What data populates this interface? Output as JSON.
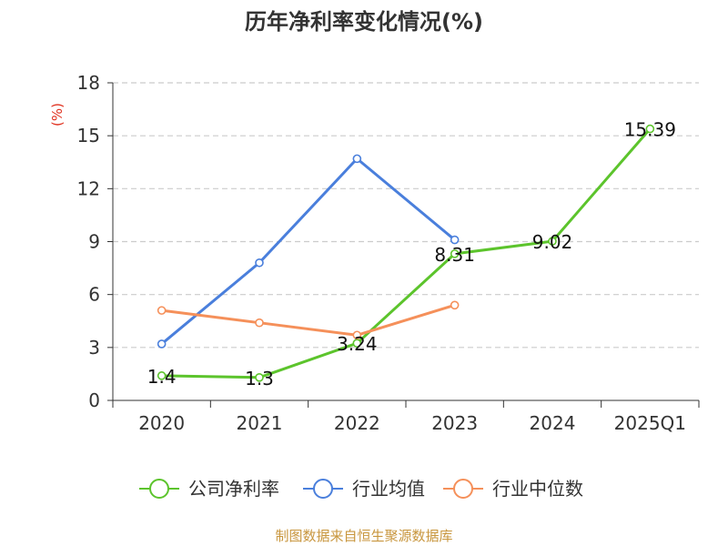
{
  "chart_data": {
    "type": "line",
    "title": "历年净利率变化情况(%)",
    "ylabel": "(%)",
    "xlabel": "",
    "categories": [
      "2020",
      "2021",
      "2022",
      "2023",
      "2024",
      "2025Q1"
    ],
    "yticks": [
      0,
      3,
      6,
      9,
      12,
      15,
      18
    ],
    "ylim": [
      0,
      18
    ],
    "grid": true,
    "legend_position": "bottom",
    "series": [
      {
        "name": "公司净利率",
        "color": "#5cc42c",
        "values": [
          1.4,
          1.3,
          3.24,
          8.31,
          9.02,
          15.39
        ],
        "labels": [
          "1.4",
          "1.3",
          "3.24",
          "8.31",
          "9.02",
          "15.39"
        ]
      },
      {
        "name": "行业均值",
        "color": "#4a7fdc",
        "values": [
          3.2,
          7.8,
          13.7,
          9.1,
          null,
          null
        ]
      },
      {
        "name": "行业中位数",
        "color": "#f5905a",
        "values": [
          5.1,
          4.4,
          3.7,
          5.4,
          null,
          null
        ]
      }
    ],
    "source": "制图数据来自恒生聚源数据库"
  }
}
